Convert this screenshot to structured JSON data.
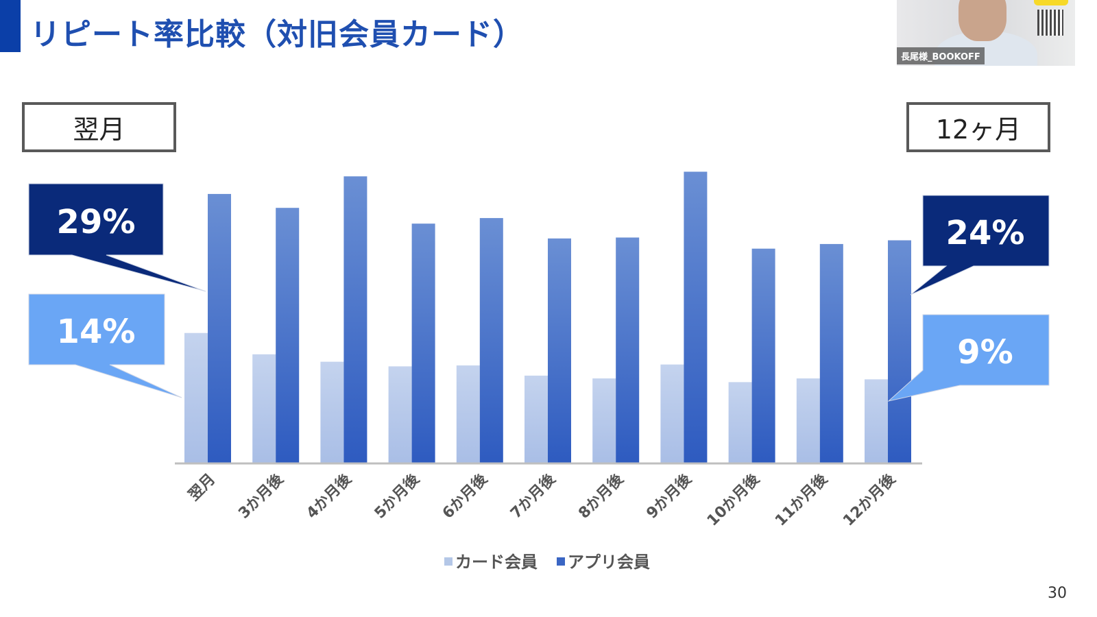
{
  "slide": {
    "title": "リピート率比較（対旧会員カード）",
    "page_number": "30",
    "left_box": "翌月",
    "right_box": "12ヶ月"
  },
  "webcam": {
    "participant_name": "長尾様_BOOKOFF"
  },
  "callouts": {
    "first_app": "29%",
    "first_card": "14%",
    "last_app": "24%",
    "last_card": "9%"
  },
  "colors": {
    "card": "#b4c7e7",
    "app": "#3a66c4",
    "dark_callout": "#0a2a7a",
    "light_callout": "#6aa6f5"
  },
  "chart_data": {
    "type": "bar",
    "title": "",
    "xlabel": "",
    "ylabel": "",
    "ylim": [
      0,
      32
    ],
    "grid": false,
    "legend": "bottom",
    "categories": [
      "翌月",
      "3か月後",
      "4か月後",
      "5か月後",
      "6か月後",
      "7か月後",
      "8か月後",
      "9か月後",
      "10か月後",
      "11か月後",
      "12か月後"
    ],
    "series": [
      {
        "name": "カード会員",
        "values": [
          14,
          11.7,
          10.9,
          10.4,
          10.5,
          9.4,
          9.1,
          10.6,
          8.7,
          9.1,
          9
        ]
      },
      {
        "name": "アプリ会員",
        "values": [
          29,
          27.5,
          30.9,
          25.8,
          26.4,
          24.2,
          24.3,
          31.4,
          23.1,
          23.6,
          24
        ]
      }
    ]
  }
}
